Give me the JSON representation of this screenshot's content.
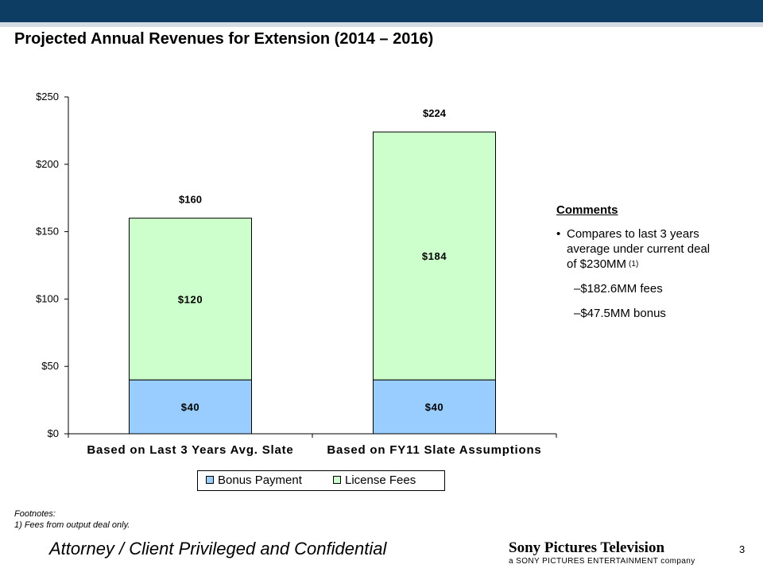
{
  "slide": {
    "title": "Projected Annual Revenues for Extension (2014 – 2016)",
    "page_number": "3",
    "footer_text": "Attorney / Client Privileged and Confidential",
    "brand": {
      "name": "Sony Pictures Television",
      "tagline": "a SONY PICTURES ENTERTAINMENT company"
    },
    "colors": {
      "header_bar": "#0e3d63",
      "bonus": "#99ccff",
      "license": "#ccffcc"
    }
  },
  "chart_data": {
    "type": "bar",
    "stacked": true,
    "categories": [
      "Based on Last 3 Years Avg. Slate",
      "Based on FY11 Slate Assumptions"
    ],
    "series": [
      {
        "name": "Bonus Payment",
        "values": [
          40,
          40
        ],
        "labels": [
          "$40",
          "$40"
        ],
        "color": "#99ccff"
      },
      {
        "name": "License Fees",
        "values": [
          120,
          184
        ],
        "labels": [
          "$120",
          "$184"
        ],
        "color": "#ccffcc"
      }
    ],
    "totals": [
      160,
      224
    ],
    "total_labels": [
      "$160",
      "$224"
    ],
    "yticks": [
      0,
      50,
      100,
      150,
      200,
      250
    ],
    "ytick_labels": [
      "$0",
      "$50",
      "$100",
      "$150",
      "$200",
      "$250"
    ],
    "ylim": [
      0,
      250
    ],
    "legend_position": "bottom",
    "grid": false
  },
  "comments": {
    "heading": "Comments",
    "bullet_text": "Compares to last 3 years average under current deal of $230MM",
    "bullet_superscript": "(1)",
    "sub_items": [
      "–$182.6MM fees",
      "–$47.5MM bonus"
    ]
  },
  "footnotes": {
    "label": "Footnotes:",
    "items": [
      "1)   Fees from output deal only."
    ]
  }
}
